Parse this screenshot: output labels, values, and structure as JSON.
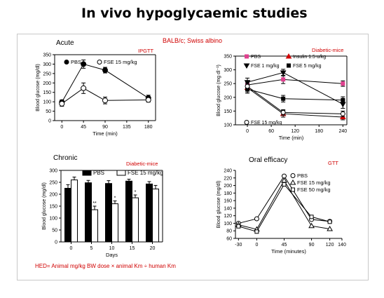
{
  "page_title": "In vivo hypoglycaemic studies",
  "subtitle": "BALB/c; Swiss albino",
  "footnote": "HED= Animal mg/kg BW dose × animal Km ÷ human Km",
  "colors": {
    "red_text": "#d00000",
    "pink_marker": "#e0408f",
    "red_marker": "#d00000"
  },
  "chart_data": [
    {
      "type": "line",
      "title": "Acute",
      "tag": "IPGTT",
      "xlabel": "Time (min)",
      "ylabel": "Blood glucose (mg/dl)",
      "xlim": [
        -15,
        195
      ],
      "ylim": [
        0,
        350
      ],
      "xticks": [
        0,
        45,
        90,
        135,
        180
      ],
      "yticks": [
        0,
        50,
        100,
        150,
        200,
        250,
        300,
        350
      ],
      "legend": "top",
      "series": [
        {
          "name": "PBS",
          "marker": "filled-circle",
          "x": [
            0,
            45,
            90,
            180
          ],
          "y": [
            98,
            300,
            268,
            120
          ],
          "err": [
            12,
            22,
            15,
            15
          ]
        },
        {
          "name": "FSE 15 mg/kg",
          "marker": "open-circle",
          "x": [
            0,
            45,
            90,
            180
          ],
          "y": [
            90,
            172,
            107,
            110
          ],
          "err": [
            14,
            28,
            18,
            12
          ]
        }
      ]
    },
    {
      "type": "line",
      "title": "",
      "tag": "Diabetic-mice",
      "xlabel": "Time (min)",
      "ylabel": "Blood glucose (mg dl⁻¹)",
      "xlim": [
        -30,
        250
      ],
      "ylim": [
        100,
        350
      ],
      "xticks": [
        0,
        60,
        120,
        180,
        240
      ],
      "yticks": [
        100,
        150,
        200,
        250,
        300,
        350
      ],
      "legend": "top",
      "series": [
        {
          "name": "PBS",
          "marker": "pink-square",
          "x": [
            0,
            90,
            240
          ],
          "y": [
            245,
            265,
            250
          ],
          "err": [
            15,
            15,
            10
          ]
        },
        {
          "name": "Insulin 1.5 u/kg",
          "marker": "red-triangle",
          "x": [
            0,
            90,
            240
          ],
          "y": [
            235,
            140,
            128
          ],
          "err": [
            15,
            12,
            10
          ]
        },
        {
          "name": "FSE 1 mg/kg",
          "marker": "down-triangle",
          "x": [
            0,
            90,
            240
          ],
          "y": [
            255,
            290,
            175
          ],
          "err": [
            15,
            12,
            15
          ]
        },
        {
          "name": "FSE 5 mg/kg",
          "marker": "filled-square",
          "x": [
            0,
            90,
            240
          ],
          "y": [
            230,
            195,
            190
          ],
          "err": [
            15,
            12,
            12
          ]
        },
        {
          "name": "FSE 15 mg/kg",
          "marker": "open-circle",
          "x": [
            0,
            90,
            240
          ],
          "y": [
            240,
            145,
            140
          ],
          "err": [
            15,
            10,
            10
          ]
        }
      ]
    },
    {
      "type": "bar",
      "title": "Chronic",
      "tag": "Diabetic-mice",
      "xlabel": "Days",
      "ylabel": "Blood glucose (mg/dl)",
      "categories": [
        "0",
        "5",
        "10",
        "15",
        "20"
      ],
      "ylim": [
        0,
        300
      ],
      "yticks": [
        0,
        50,
        100,
        150,
        200,
        250,
        300
      ],
      "legend": "top",
      "series": [
        {
          "name": "PBS",
          "fill": "black",
          "values": [
            225,
            248,
            245,
            255,
            243
          ],
          "err": [
            15,
            10,
            12,
            8,
            10
          ]
        },
        {
          "name": "FSE 15 mg/kg",
          "fill": "white",
          "values": [
            260,
            135,
            160,
            185,
            222
          ],
          "err": [
            12,
            15,
            12,
            12,
            15
          ]
        }
      ],
      "annotations": [
        "**",
        "*",
        "*"
      ]
    },
    {
      "type": "line",
      "title": "Oral efficacy",
      "tag": "GTT",
      "xlabel": "Time (minutes)",
      "ylabel": "Blood glucose (mg/dl)",
      "xlim": [
        -35,
        140
      ],
      "ylim": [
        60,
        240
      ],
      "xticks": [
        -30,
        0,
        45,
        90,
        120,
        140
      ],
      "yticks": [
        60,
        80,
        100,
        120,
        140,
        160,
        180,
        200,
        220,
        240
      ],
      "legend": "top",
      "series": [
        {
          "name": "PBS",
          "marker": "open-circle",
          "x": [
            -30,
            0,
            45,
            90,
            120
          ],
          "y": [
            100,
            112,
            225,
            110,
            105
          ]
        },
        {
          "name": "FSE 15 mg/kg",
          "marker": "open-triangle",
          "x": [
            -30,
            0,
            45,
            90,
            120
          ],
          "y": [
            96,
            84,
            213,
            93,
            85
          ]
        },
        {
          "name": "FSE 50 mg/kg",
          "marker": "open-square",
          "x": [
            -30,
            0,
            45,
            90,
            120
          ],
          "y": [
            92,
            78,
            203,
            117,
            104
          ]
        }
      ]
    }
  ]
}
